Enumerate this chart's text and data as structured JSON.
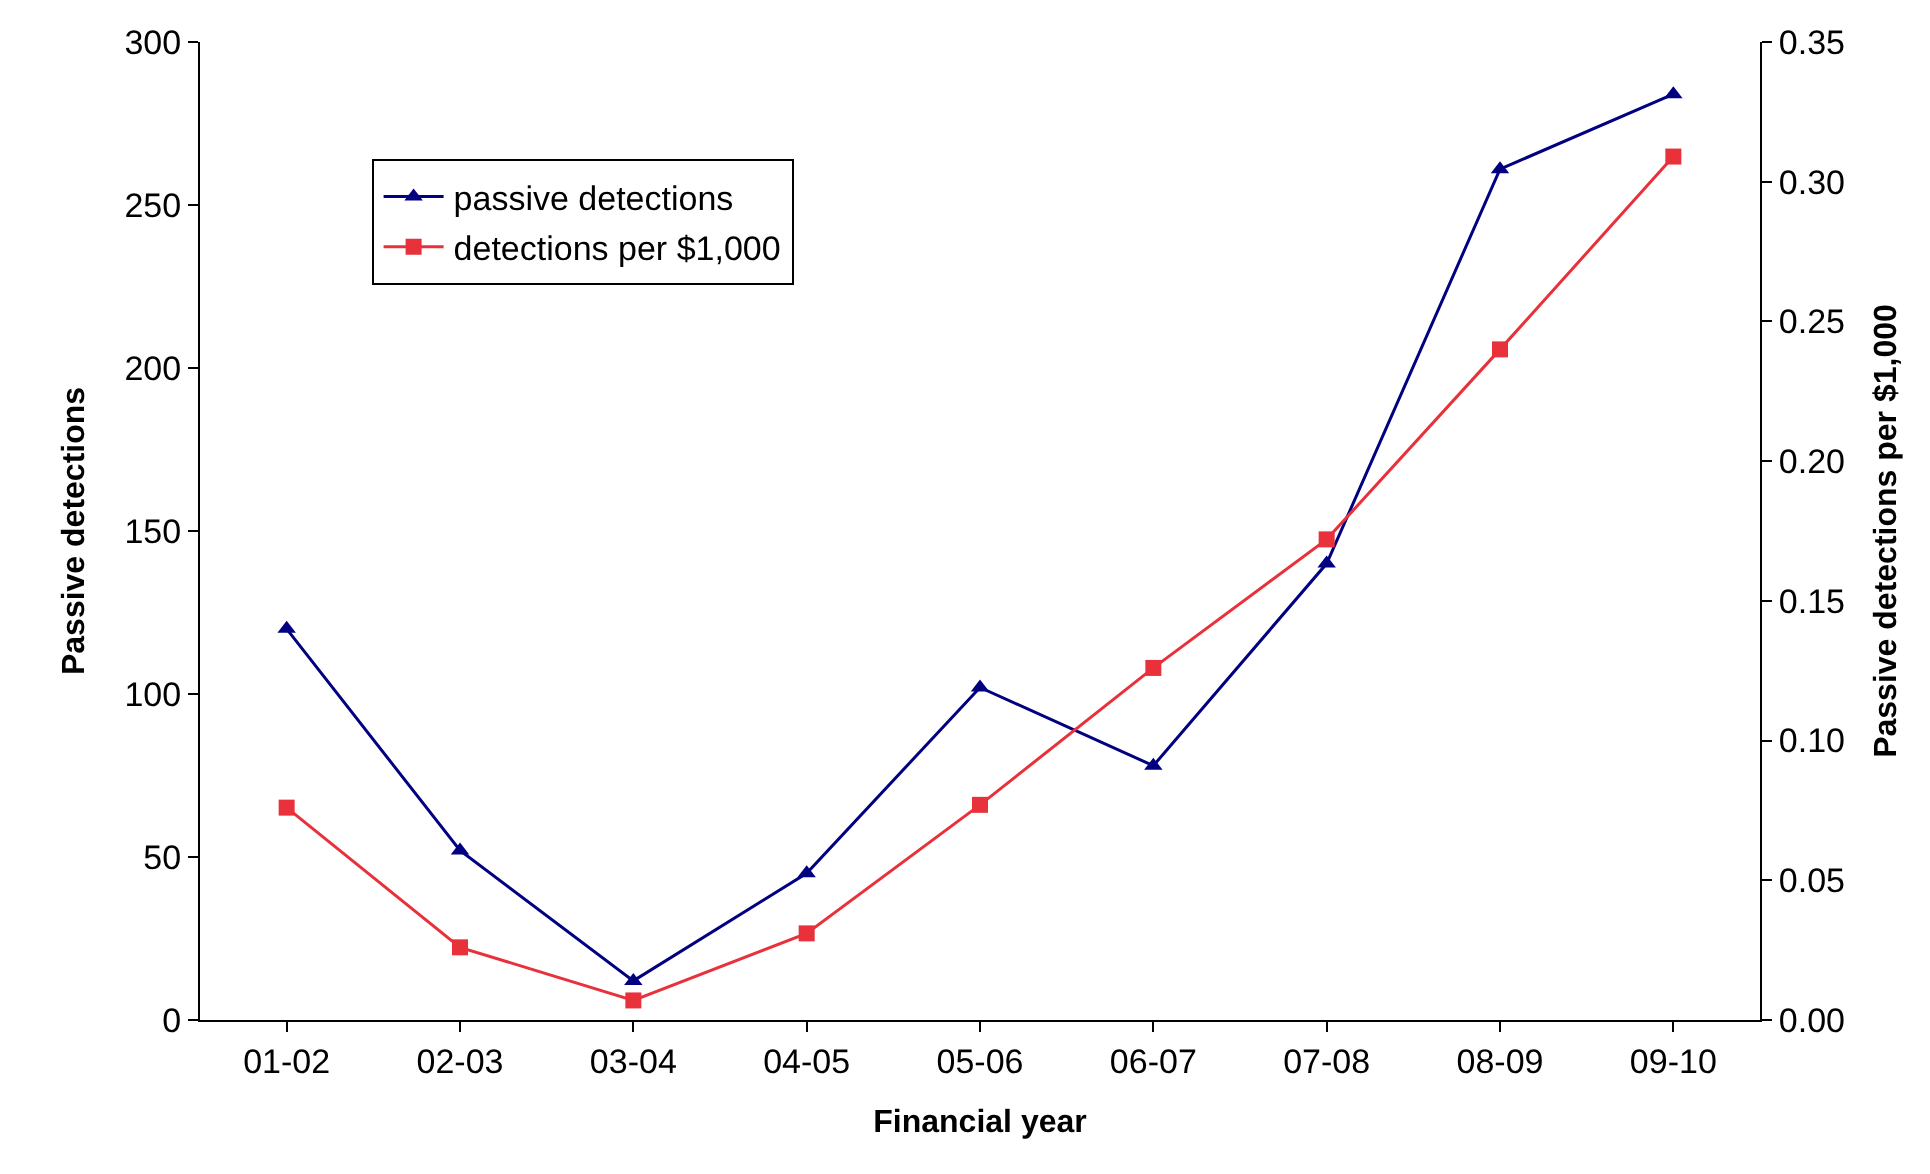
{
  "chart_data": {
    "type": "line",
    "xlabel": "Financial year",
    "ylabel": "Passive detections",
    "y2label": "Passive detections per $1,000",
    "categories": [
      "01-02",
      "02-03",
      "03-04",
      "04-05",
      "05-06",
      "06-07",
      "07-08",
      "08-09",
      "09-10"
    ],
    "series": [
      {
        "name": "passive detections",
        "color": "#000080",
        "marker": "triangle",
        "values": [
          120,
          52,
          12,
          45,
          102,
          78,
          140,
          261,
          284
        ]
      },
      {
        "name": "detections per $1,000",
        "color": "#e8313a",
        "marker": "square",
        "axis": "y2",
        "values": [
          0.076,
          0.026,
          0.007,
          0.031,
          0.077,
          0.126,
          0.172,
          0.24,
          0.309
        ]
      }
    ],
    "ylim": [
      0,
      300
    ],
    "yticks": [
      0,
      50,
      100,
      150,
      200,
      250,
      300
    ],
    "y2lim": [
      0,
      0.35
    ],
    "y2ticks": [
      {
        "value": 0,
        "label": "0.00"
      },
      {
        "value": 0.05,
        "label": "0.05"
      },
      {
        "value": 0.1,
        "label": "0.10"
      },
      {
        "value": 0.15,
        "label": "0.15"
      },
      {
        "value": 0.2,
        "label": "0.20"
      },
      {
        "value": 0.25,
        "label": "0.25"
      },
      {
        "value": 0.3,
        "label": "0.30"
      },
      {
        "value": 0.35,
        "label": "0.35"
      }
    ],
    "legend": "top left",
    "line_style": "solid"
  }
}
